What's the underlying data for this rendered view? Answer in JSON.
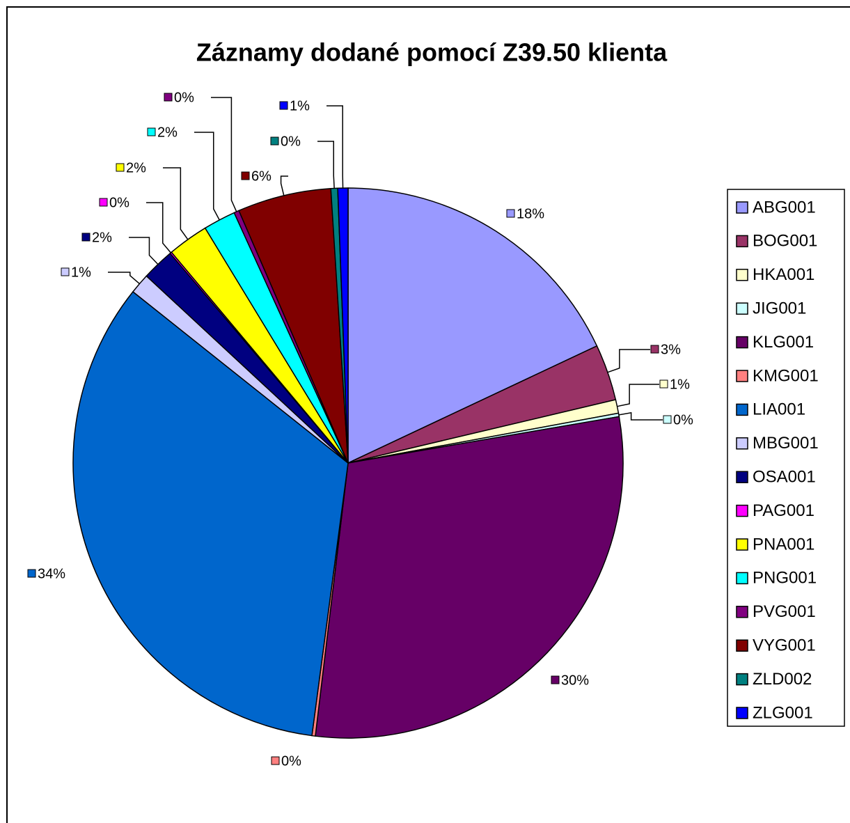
{
  "chart_data": {
    "type": "pie",
    "title": "Záznamy dodané pomocí Z39.50 klienta",
    "categories": [
      "ABG001",
      "BOG001",
      "HKA001",
      "JIG001",
      "KLG001",
      "KMG001",
      "LIA001",
      "MBG001",
      "OSA001",
      "PAG001",
      "PNA001",
      "PNG001",
      "PVG001",
      "VYG001",
      "ZLD002",
      "ZLG001"
    ],
    "values": [
      18.0,
      3.3,
      0.8,
      0.2,
      29.6,
      0.2,
      33.6,
      1.2,
      1.9,
      0.1,
      2.4,
      1.9,
      0.3,
      5.5,
      0.4,
      0.6
    ],
    "value_labels": [
      "18%",
      "3%",
      "1%",
      "0%",
      "30%",
      "0%",
      "34%",
      "1%",
      "2%",
      "0%",
      "2%",
      "2%",
      "0%",
      "6%",
      "0%",
      "1%"
    ],
    "colors": [
      "#9999FF",
      "#993366",
      "#FFFFCC",
      "#CCFFFF",
      "#660066",
      "#FF8080",
      "#0066CC",
      "#CCCCFF",
      "#000080",
      "#FF00FF",
      "#FFFF00",
      "#00FFFF",
      "#800080",
      "#800000",
      "#008080",
      "#0000FF"
    ],
    "legend": "right"
  }
}
